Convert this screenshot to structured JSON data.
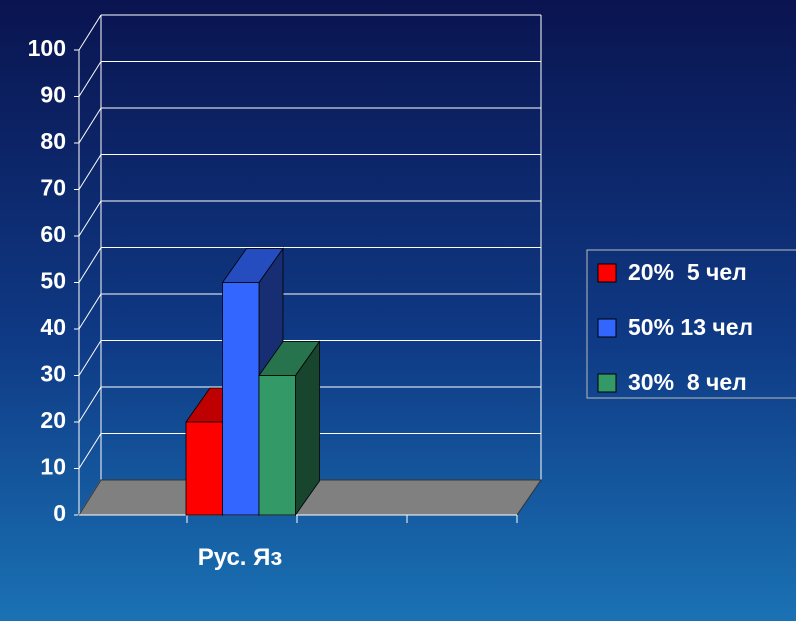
{
  "chart_data": {
    "type": "bar3d",
    "categories": [
      "Рус. Яз"
    ],
    "series": [
      {
        "name": "20%  5 чел",
        "color": "#ff0000",
        "values": [
          20
        ]
      },
      {
        "name": "50% 13 чел",
        "color": "#3366ff",
        "values": [
          50
        ]
      },
      {
        "name": "30%  8 чел",
        "color": "#339966",
        "values": [
          30
        ]
      }
    ],
    "ylim": [
      0,
      100
    ],
    "yticks": [
      0,
      10,
      20,
      30,
      40,
      50,
      60,
      70,
      80,
      90,
      100
    ],
    "grid": true,
    "legend": "right"
  }
}
